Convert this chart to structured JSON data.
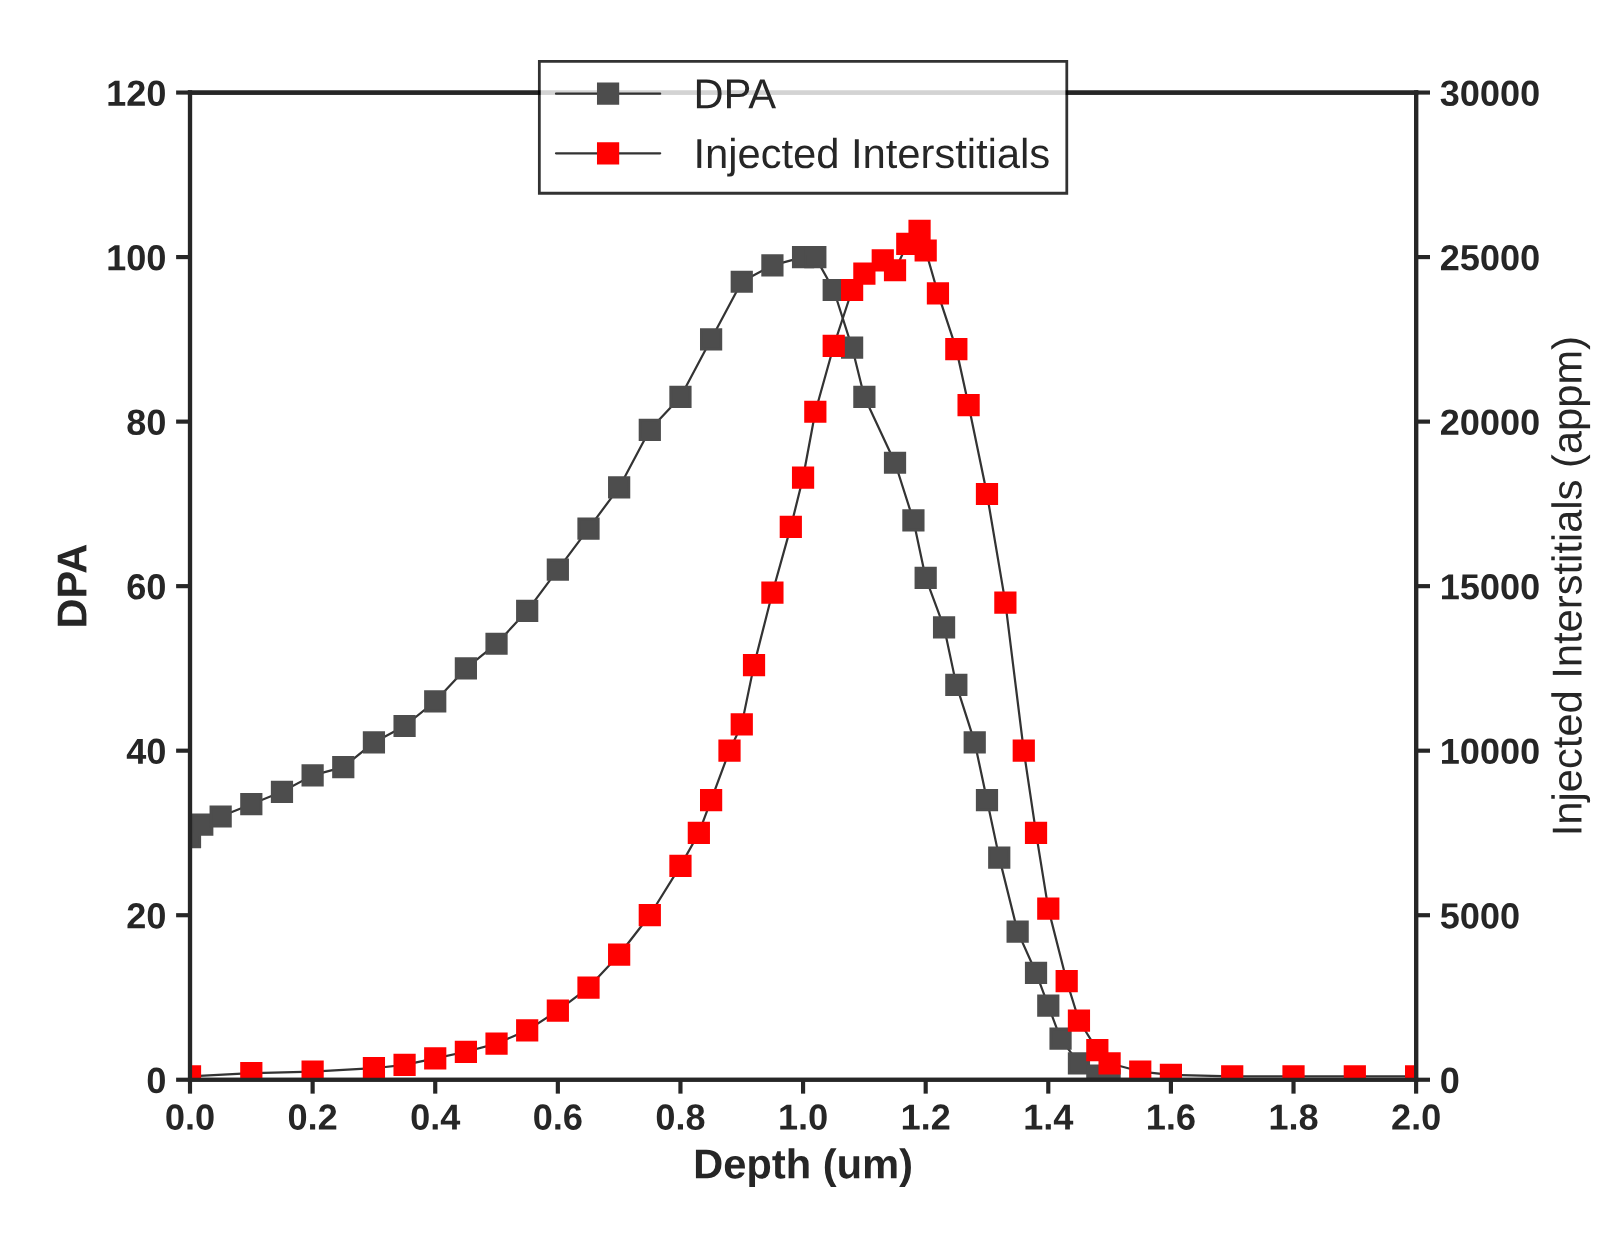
{
  "chart_data": {
    "type": "line",
    "xlabel": "Depth (um)",
    "ylabel": "DPA",
    "y2label": "Injected Interstitials (appm)",
    "series": [
      {
        "name": "DPA",
        "color": "#4d4d4d",
        "x": [
          0.0,
          0.02,
          0.05,
          0.1,
          0.15,
          0.2,
          0.25,
          0.3,
          0.35,
          0.4,
          0.45,
          0.5,
          0.55,
          0.6,
          0.65,
          0.7,
          0.75,
          0.8,
          0.85,
          0.9,
          0.95,
          1.0,
          1.02,
          1.05,
          1.08,
          1.1,
          1.15,
          1.18,
          1.2,
          1.23,
          1.25,
          1.28,
          1.3,
          1.32,
          1.35,
          1.38,
          1.4,
          1.42,
          1.45,
          1.48,
          1.5
        ],
        "values": [
          29.5,
          31,
          32,
          33.5,
          35,
          37,
          38,
          41,
          43,
          46,
          50,
          53,
          57,
          62,
          67,
          72,
          79,
          83,
          90,
          97,
          99,
          100,
          100,
          96,
          89,
          83,
          75,
          68,
          61,
          55,
          48,
          41,
          34,
          27,
          18,
          13,
          9,
          5,
          2,
          0.5,
          0
        ]
      },
      {
        "name": "Injected Interstitials",
        "color": "#ff0000",
        "axis": "y2",
        "x": [
          0.0,
          0.1,
          0.2,
          0.3,
          0.35,
          0.4,
          0.45,
          0.5,
          0.55,
          0.6,
          0.65,
          0.7,
          0.75,
          0.8,
          0.83,
          0.85,
          0.88,
          0.9,
          0.92,
          0.95,
          0.98,
          1.0,
          1.02,
          1.05,
          1.08,
          1.1,
          1.13,
          1.15,
          1.17,
          1.19,
          1.2,
          1.22,
          1.25,
          1.27,
          1.3,
          1.33,
          1.36,
          1.38,
          1.4,
          1.43,
          1.45,
          1.48,
          1.5,
          1.55,
          1.6,
          1.7,
          1.8,
          1.9,
          2.0
        ],
        "values": [
          100,
          200,
          250,
          350,
          450,
          650,
          850,
          1100,
          1500,
          2100,
          2800,
          3800,
          5000,
          6500,
          7500,
          8500,
          10000,
          10800,
          12600,
          14800,
          16800,
          18300,
          20300,
          22300,
          24000,
          24500,
          24900,
          24600,
          25400,
          25800,
          25200,
          23900,
          22200,
          20500,
          17800,
          14500,
          10000,
          7500,
          5200,
          3000,
          1800,
          900,
          500,
          250,
          150,
          100,
          100,
          100,
          100
        ]
      }
    ],
    "xlim": [
      0,
      2
    ],
    "xticks": [
      {
        "value": 0,
        "label": "0.0"
      },
      {
        "value": 0.2,
        "label": "0.2"
      },
      {
        "value": 0.4,
        "label": "0.4"
      },
      {
        "value": 0.6,
        "label": "0.6"
      },
      {
        "value": 0.8,
        "label": "0.8"
      },
      {
        "value": 1.0,
        "label": "1.0"
      },
      {
        "value": 1.2,
        "label": "1.2"
      },
      {
        "value": 1.4,
        "label": "1.4"
      },
      {
        "value": 1.6,
        "label": "1.6"
      },
      {
        "value": 1.8,
        "label": "1.8"
      },
      {
        "value": 2.0,
        "label": "2.0"
      }
    ],
    "ylim": [
      0,
      120
    ],
    "yticks": [
      0,
      20,
      40,
      60,
      80,
      100,
      120
    ],
    "y2lim": [
      0,
      30000
    ],
    "y2ticks": [
      0,
      5000,
      10000,
      15000,
      20000,
      25000,
      30000
    ],
    "marker": "square",
    "line_style": "solid",
    "grid": false,
    "legend": "top"
  }
}
